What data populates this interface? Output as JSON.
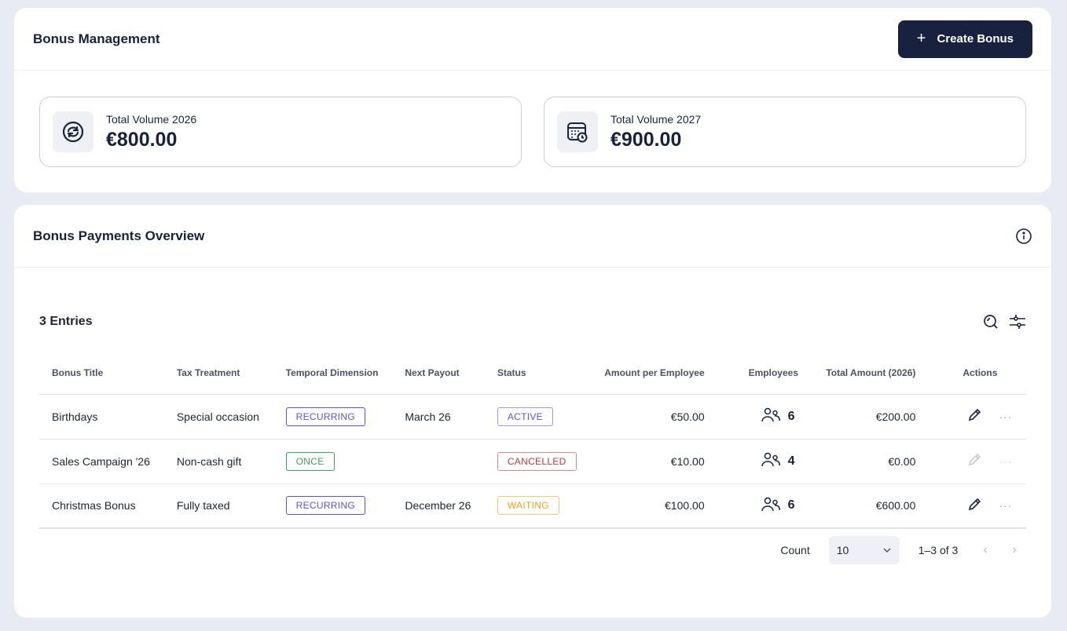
{
  "header": {
    "title": "Bonus Management",
    "create_button": "Create Bonus"
  },
  "stats": [
    {
      "label": "Total Volume 2026",
      "value": "€800.00",
      "icon": "refresh-circle-icon"
    },
    {
      "label": "Total Volume 2027",
      "value": "€900.00",
      "icon": "calendar-clock-icon"
    }
  ],
  "overview": {
    "title": "Bonus Payments Overview",
    "entries": "3 Entries"
  },
  "table": {
    "columns": [
      "Bonus Title",
      "Tax Treatment",
      "Temporal Dimension",
      "Next Payout",
      "Status",
      "Amount per Employee",
      "Employees",
      "Total Amount (2026)",
      "Actions"
    ],
    "rows": [
      {
        "title": "Birthdays",
        "tax": "Special occasion",
        "temporal": "RECURRING",
        "next": "March 26",
        "status": "ACTIVE",
        "amount": "€50.00",
        "employees": "6",
        "total": "€200.00",
        "editable": true
      },
      {
        "title": "Sales Campaign '26",
        "tax": "Non-cash gift",
        "temporal": "ONCE",
        "next": "",
        "status": "CANCELLED",
        "amount": "€10.00",
        "employees": "4",
        "total": "€0.00",
        "editable": false
      },
      {
        "title": "Christmas Bonus",
        "tax": "Fully taxed",
        "temporal": "RECURRING",
        "next": "December 26",
        "status": "WAITING",
        "amount": "€100.00",
        "employees": "6",
        "total": "€600.00",
        "editable": true
      }
    ]
  },
  "pagination": {
    "count_label": "Count",
    "count_value": "10",
    "range": "1–3 of 3"
  },
  "colors": {
    "RECURRING": "#5b4ff5",
    "ONCE": "#3aa55d",
    "ACTIVE": "#5b4ff5",
    "CANCELLED": "#d0323f",
    "WAITING": "#f0a020",
    "primary": "#18213d"
  }
}
